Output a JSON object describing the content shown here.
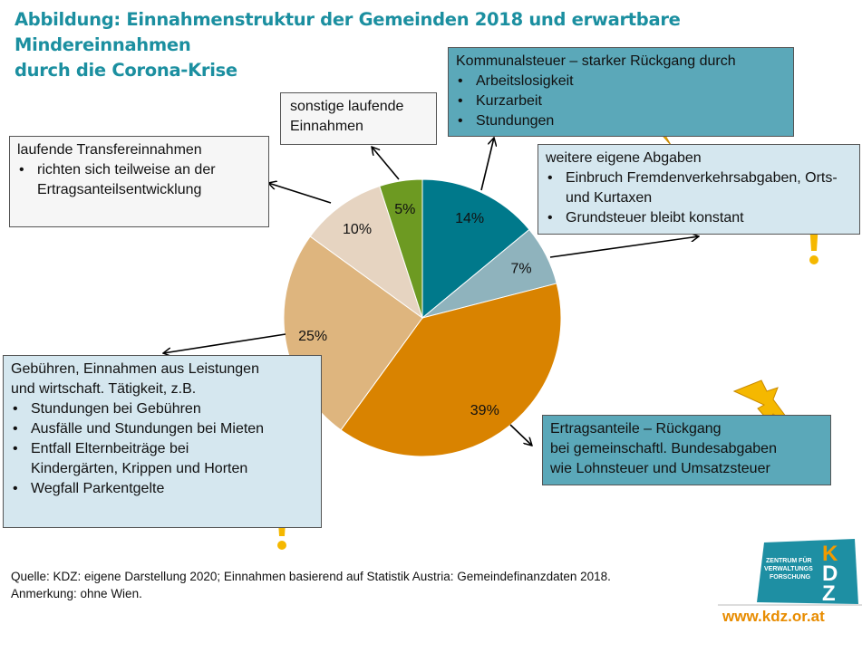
{
  "chart_data": {
    "type": "pie",
    "title": "Abbildung: Einnahmenstruktur der Gemeinden 2018 und erwartbare Mindereinnahmen durch die Corona-Krise",
    "slices": [
      {
        "name": "Kommunalsteuer",
        "value": 14,
        "label": "14%",
        "color": "#00798b"
      },
      {
        "name": "weitere eigene Abgaben",
        "value": 7,
        "label": "7%",
        "color": "#8fb3bd"
      },
      {
        "name": "Ertragsanteile",
        "value": 39,
        "label": "39%",
        "color": "#d98300"
      },
      {
        "name": "Gebühren, Einnahmen aus Leistungen und wirtschaft. Tätigkeit",
        "value": 25,
        "label": "25%",
        "color": "#deb57e"
      },
      {
        "name": "laufende Transfereinnahmen",
        "value": 10,
        "label": "10%",
        "color": "#e6d4c1"
      },
      {
        "name": "sonstige laufende Einnahmen",
        "value": 5,
        "label": "5%",
        "color": "#6d9a22"
      }
    ]
  },
  "title_line1": "Abbildung: Einnahmenstruktur der Gemeinden 2018 und erwartbare Mindereinnahmen",
  "title_line2": "durch die Corona-Krise",
  "boxes": {
    "kommunal": {
      "head": "Kommunalsteuer – starker Rückgang durch",
      "items": [
        "Arbeitslosigkeit",
        "Kurzarbeit",
        "Stundungen"
      ]
    },
    "weitere": {
      "head": "weitere eigene Abgaben",
      "items": [
        "Einbruch Fremdenverkehrsabgaben, Orts- und Kurtaxen",
        "Grundsteuer bleibt konstant"
      ]
    },
    "ertrag": {
      "l1": "Ertragsanteile – Rückgang",
      "l2": "bei gemeinschaftl. Bundesabgaben",
      "l3": "wie Lohnsteuer und Umsatzsteuer"
    },
    "gebuehren": {
      "l1": "Gebühren, Einnahmen aus Leistungen",
      "l2": "und wirtschaft. Tätigkeit, z.B.",
      "items": [
        "Stundungen bei Gebühren",
        "Ausfälle und Stundungen bei Mieten",
        "Entfall Elternbeiträge bei Kindergärten, Krippen und Horten",
        "Wegfall Parkentgelte"
      ]
    },
    "transfer": {
      "head": "laufende Transfereinnahmen",
      "items": [
        "richten sich teilweise an der Ertragsanteilsentwicklung"
      ]
    },
    "sonstige": {
      "l1": "sonstige laufende",
      "l2": "Einnahmen"
    }
  },
  "source_line1": "Quelle:  KDZ: eigene Darstellung 2020; Einnahmen basierend auf Statistik Austria: Gemeindefinanzdaten 2018.",
  "source_line2": "Anmerkung:  ohne Wien.",
  "logo_text": "ZENTRUM FÜR VERWALTUNGS FORSCHUNG KDZ",
  "url": "www.kdz.or.at"
}
